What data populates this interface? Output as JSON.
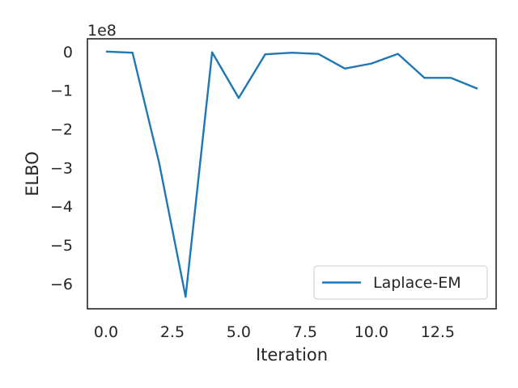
{
  "chart_data": {
    "type": "line",
    "xlabel": "Iteration",
    "ylabel": "ELBO",
    "offset_label": "1e8",
    "xlim": [
      -0.7,
      14.7
    ],
    "ylim": [
      -6.65,
      0.33
    ],
    "x_ticks": [
      0.0,
      2.5,
      5.0,
      7.5,
      10.0,
      12.5
    ],
    "x_tick_labels": [
      "0.0",
      "2.5",
      "5.0",
      "7.5",
      "10.0",
      "12.5"
    ],
    "y_ticks": [
      0,
      -1,
      -2,
      -3,
      -4,
      -5,
      -6
    ],
    "y_tick_labels": [
      "0",
      "−1",
      "−2",
      "−3",
      "−4",
      "−5",
      "−6"
    ],
    "grid": false,
    "legend_position": "lower-right",
    "series": [
      {
        "name": "Laplace-EM",
        "color": "#1f77b4",
        "x": [
          0,
          1,
          2,
          3,
          4,
          5,
          6,
          7,
          8,
          9,
          10,
          11,
          12,
          13,
          14
        ],
        "y": [
          0.0,
          -0.03,
          -2.87,
          -6.34,
          -0.02,
          -1.2,
          -0.07,
          -0.03,
          -0.06,
          -0.44,
          -0.31,
          -0.06,
          -0.68,
          -0.68,
          -0.96
        ]
      }
    ]
  }
}
